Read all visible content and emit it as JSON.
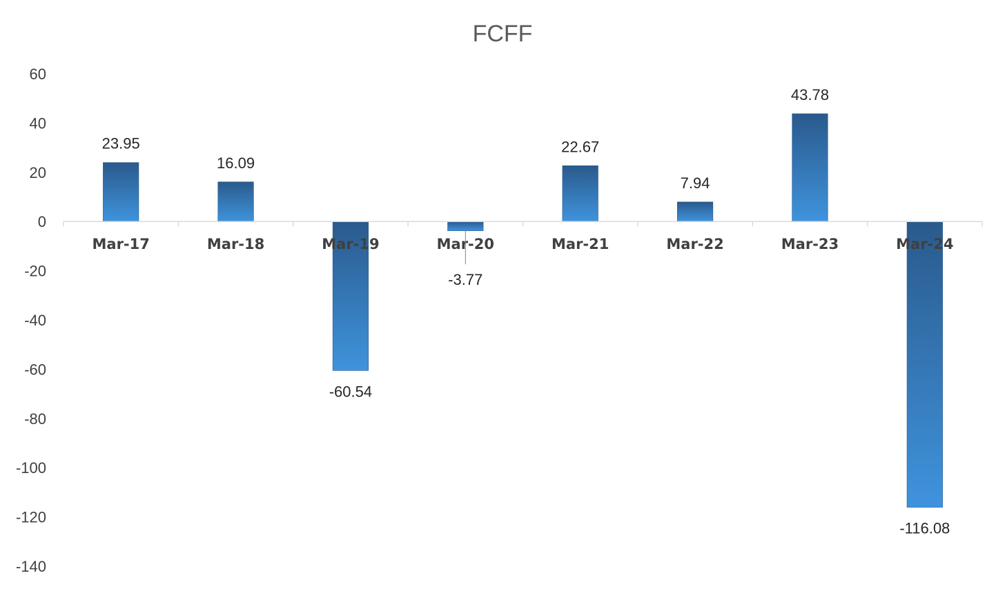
{
  "chart_data": {
    "type": "bar",
    "title": "FCFF",
    "categories": [
      "Mar-17",
      "Mar-18",
      "Mar-19",
      "Mar-20",
      "Mar-21",
      "Mar-22",
      "Mar-23",
      "Mar-24"
    ],
    "values": [
      23.95,
      16.09,
      -60.54,
      -3.77,
      22.67,
      7.94,
      43.78,
      -116.08
    ],
    "data_labels": [
      "23.95",
      "16.09",
      "-60.54",
      "-3.77",
      "22.67",
      "7.94",
      "43.78",
      "-116.08"
    ],
    "yticks": [
      60,
      40,
      20,
      0,
      -20,
      -40,
      -60,
      -80,
      -100,
      -120,
      -140
    ],
    "ylim": [
      -140,
      60
    ],
    "xlabel": "",
    "ylabel": "",
    "grid": false,
    "legend": "none",
    "bar_color_top": "#2a5a8c",
    "bar_color_bottom": "#3f93dd"
  }
}
